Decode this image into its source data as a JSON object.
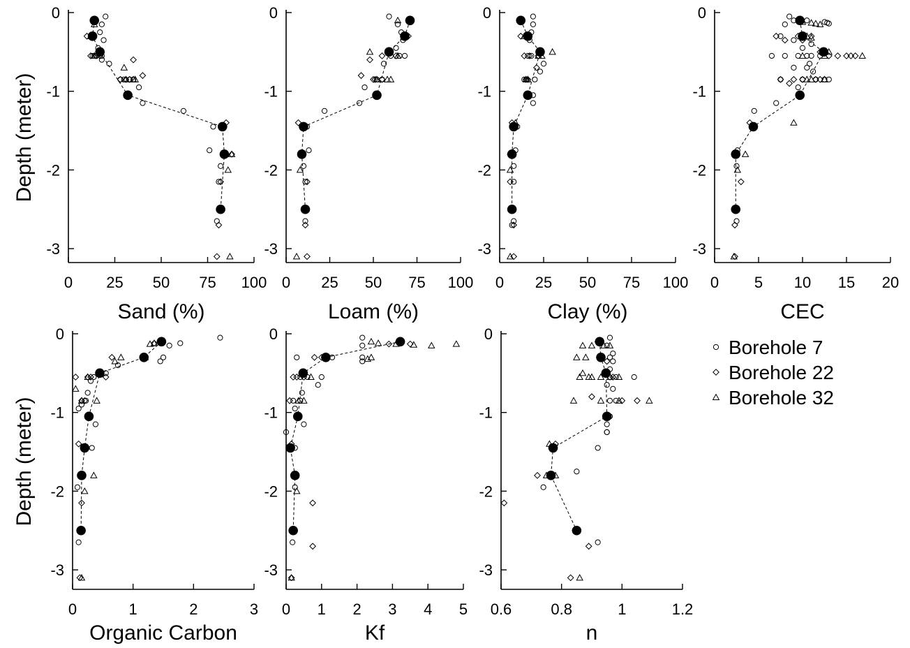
{
  "figure": {
    "y_axis_label": "Depth (meter)",
    "y_ticks": [
      0,
      -1,
      -2,
      -3
    ]
  },
  "legend": {
    "items": [
      {
        "marker": "circle",
        "label": "Borehole 7"
      },
      {
        "marker": "diamond",
        "label": "Borehole 22"
      },
      {
        "marker": "triangle",
        "label": "Borehole 32"
      }
    ]
  },
  "chart_data": [
    {
      "type": "scatter",
      "xlabel": "Sand (%)",
      "ylabel": "Depth (meter)",
      "xlim": [
        0,
        100
      ],
      "ylim": [
        -3.2,
        0
      ],
      "x_ticks": [
        0,
        25,
        50,
        75,
        100
      ],
      "mean": {
        "x": [
          14,
          13,
          17,
          32,
          83,
          84,
          82
        ],
        "y": [
          -0.1,
          -0.3,
          -0.5,
          -1.05,
          -1.45,
          -1.8,
          -2.5
        ]
      },
      "series": [
        {
          "name": "Borehole 7",
          "marker": "circle",
          "x": [
            20,
            18,
            17,
            19,
            18,
            15,
            14,
            13,
            16,
            18,
            22,
            28,
            30,
            33,
            35,
            38,
            40,
            62,
            78,
            76,
            82,
            81,
            80
          ],
          "y": [
            -0.05,
            -0.15,
            -0.25,
            -0.35,
            -0.55,
            -0.55,
            -0.55,
            -0.55,
            -0.45,
            -0.6,
            -0.65,
            -0.85,
            -0.85,
            -0.85,
            -0.85,
            -0.95,
            -1.15,
            -1.25,
            -1.45,
            -1.75,
            -1.95,
            -2.15,
            -2.65
          ]
        },
        {
          "name": "Borehole 22",
          "marker": "diamond",
          "x": [
            10,
            12,
            15,
            17,
            35,
            40,
            33,
            28,
            31,
            85,
            88,
            82,
            81,
            80
          ],
          "y": [
            -0.3,
            -0.55,
            -0.55,
            -0.55,
            -0.6,
            -0.8,
            -0.85,
            -0.85,
            -0.85,
            -1.4,
            -1.8,
            -2.15,
            -2.7,
            -3.1
          ]
        },
        {
          "name": "Borehole 32",
          "marker": "triangle",
          "x": [
            12,
            14,
            14,
            30,
            35,
            31,
            36,
            88,
            86,
            87
          ],
          "y": [
            -0.3,
            -0.55,
            -0.15,
            -0.7,
            -0.85,
            -0.85,
            -0.85,
            -1.8,
            -2.0,
            -3.1
          ]
        }
      ]
    },
    {
      "type": "scatter",
      "xlabel": "Loam (%)",
      "ylabel": "Depth (meter)",
      "xlim": [
        0,
        100
      ],
      "ylim": [
        -3.2,
        0
      ],
      "x_ticks": [
        0,
        25,
        50,
        75,
        100
      ],
      "mean": {
        "x": [
          71,
          68,
          59,
          52,
          10,
          9,
          11
        ],
        "y": [
          -0.1,
          -0.3,
          -0.5,
          -1.05,
          -1.45,
          -1.8,
          -2.5
        ]
      },
      "series": [
        {
          "name": "Borehole 7",
          "marker": "circle",
          "x": [
            59,
            64,
            66,
            67,
            65,
            60,
            68,
            63,
            56,
            55,
            52,
            45,
            42,
            22,
            12,
            13,
            10,
            11,
            11
          ],
          "y": [
            -0.05,
            -0.15,
            -0.25,
            -0.35,
            -0.55,
            -0.55,
            -0.55,
            -0.45,
            -0.65,
            -0.85,
            -0.85,
            -0.95,
            -1.15,
            -1.25,
            -1.45,
            -1.75,
            -1.95,
            -2.15,
            -2.65
          ]
        },
        {
          "name": "Borehole 22",
          "marker": "diamond",
          "x": [
            70,
            63,
            55,
            48,
            43,
            50,
            55,
            51,
            7,
            9,
            12,
            11,
            12
          ],
          "y": [
            -0.3,
            -0.55,
            -0.55,
            -0.6,
            -0.8,
            -0.85,
            -0.85,
            -0.85,
            -1.4,
            -1.8,
            -2.15,
            -2.7,
            -3.1
          ]
        },
        {
          "name": "Borehole 32",
          "marker": "triangle",
          "x": [
            64,
            68,
            64,
            48,
            58,
            52,
            60,
            8,
            6
          ],
          "y": [
            -0.1,
            -0.3,
            -0.55,
            -0.5,
            -0.85,
            -0.85,
            -0.85,
            -2.0,
            -3.1
          ]
        }
      ]
    },
    {
      "type": "scatter",
      "xlabel": "Clay (%)",
      "ylabel": "Depth (meter)",
      "xlim": [
        0,
        100
      ],
      "ylim": [
        -3.2,
        0
      ],
      "x_ticks": [
        0,
        25,
        50,
        75,
        100
      ],
      "mean": {
        "x": [
          12,
          16,
          23,
          16,
          8,
          7,
          7
        ],
        "y": [
          -0.1,
          -0.3,
          -0.5,
          -1.05,
          -1.45,
          -1.8,
          -2.5
        ]
      },
      "series": [
        {
          "name": "Borehole 7",
          "marker": "circle",
          "x": [
            19,
            19,
            18,
            17,
            16,
            18,
            22,
            25,
            23,
            20,
            15,
            14,
            19,
            19,
            10,
            9,
            8,
            8,
            8,
            7
          ],
          "y": [
            -0.05,
            -0.15,
            -0.25,
            -0.35,
            -0.55,
            -0.55,
            -0.55,
            -0.65,
            -0.75,
            -0.85,
            -0.85,
            -0.85,
            -1.05,
            -1.15,
            -1.45,
            -1.75,
            -1.95,
            -2.15,
            -2.65,
            -2.7
          ]
        },
        {
          "name": "Borehole 22",
          "marker": "diamond",
          "x": [
            12,
            14,
            17,
            22,
            21,
            16,
            15,
            7,
            6,
            6,
            8,
            8
          ],
          "y": [
            -0.3,
            -0.55,
            -0.55,
            -0.55,
            -0.7,
            -0.85,
            -0.85,
            -1.4,
            -1.8,
            -2.15,
            -2.7,
            -3.1
          ]
        },
        {
          "name": "Borehole 32",
          "marker": "triangle",
          "x": [
            12,
            14,
            22,
            30,
            24,
            15,
            16,
            9,
            6,
            6
          ],
          "y": [
            -0.1,
            -0.3,
            -0.55,
            -0.5,
            -0.55,
            -0.85,
            -0.85,
            -1.4,
            -2.0,
            -3.1
          ]
        }
      ]
    },
    {
      "type": "scatter",
      "xlabel": "CEC",
      "ylabel": "Depth (meter)",
      "xlim": [
        0,
        20
      ],
      "ylim": [
        -3.2,
        0
      ],
      "x_ticks": [
        0,
        5,
        10,
        15,
        20
      ],
      "mean": {
        "x": [
          9.7,
          10.0,
          12.4,
          9.7,
          4.4,
          2.4,
          2.4
        ],
        "y": [
          -0.1,
          -0.3,
          -0.5,
          -1.05,
          -1.45,
          -1.8,
          -2.5
        ]
      },
      "series": [
        {
          "name": "Borehole 7",
          "marker": "circle",
          "x": [
            8.5,
            9.0,
            8.0,
            7.5,
            10.5,
            12.5,
            12.8,
            13.0,
            9.0,
            10.0,
            11.0,
            6.5,
            8.0,
            9.5,
            10.5,
            11.0,
            12.0,
            9.0,
            10.5,
            7.5,
            10.0,
            11.5,
            12.5,
            13.0,
            11.2,
            10.8,
            9.5,
            7.0,
            4.5,
            2.6,
            2.5,
            2.5
          ],
          "y": [
            -0.05,
            -0.1,
            -0.15,
            -0.3,
            -0.1,
            -0.12,
            -0.13,
            -0.14,
            -0.35,
            -0.45,
            -0.4,
            -0.55,
            -0.55,
            -0.55,
            -0.55,
            -0.55,
            -0.55,
            -0.7,
            -0.7,
            -0.85,
            -0.85,
            -0.85,
            -0.85,
            -0.85,
            -0.75,
            -0.65,
            -0.95,
            -1.15,
            -1.25,
            -1.75,
            -1.95,
            -2.65
          ]
        },
        {
          "name": "Borehole 22",
          "marker": "diamond",
          "x": [
            7.0,
            8.0,
            9.5,
            10.0,
            11.0,
            12.0,
            13.0,
            14.0,
            15.0,
            15.5,
            16.0,
            7.5,
            8.5,
            9.0,
            10.0,
            11.5,
            12.0,
            4.0,
            3.0,
            2.3,
            2.3
          ],
          "y": [
            -0.3,
            -0.35,
            -0.3,
            -0.35,
            -0.3,
            -0.5,
            -0.55,
            -0.55,
            -0.55,
            -0.55,
            -0.55,
            -0.85,
            -0.9,
            -0.85,
            -0.85,
            -0.85,
            -0.85,
            -1.4,
            -2.15,
            -2.7,
            -3.1
          ]
        },
        {
          "name": "Borehole 32",
          "marker": "triangle",
          "x": [
            10.0,
            11.0,
            11.5,
            12.0,
            10.5,
            11.0,
            13.0,
            16.8,
            12.5,
            10.0,
            11.0,
            12.5,
            10.5,
            9.0,
            3.5,
            2.6,
            2.2
          ],
          "y": [
            -0.12,
            -0.13,
            -0.14,
            -0.15,
            -0.3,
            -0.32,
            -0.5,
            -0.55,
            -0.55,
            -0.55,
            -0.85,
            -0.85,
            -0.85,
            -1.4,
            -1.8,
            -2.0,
            -3.1
          ]
        }
      ]
    },
    {
      "type": "scatter",
      "xlabel": "Organic Carbon",
      "ylabel": "Depth (meter)",
      "xlim": [
        0,
        3
      ],
      "ylim": [
        -3.2,
        0
      ],
      "x_ticks": [
        0,
        1,
        2,
        3
      ],
      "mean": {
        "x": [
          1.47,
          1.18,
          0.45,
          0.27,
          0.2,
          0.15,
          0.14
        ],
        "y": [
          -0.1,
          -0.3,
          -0.5,
          -1.05,
          -1.45,
          -1.8,
          -2.5
        ]
      },
      "series": [
        {
          "name": "Borehole 7",
          "marker": "circle",
          "x": [
            2.44,
            1.78,
            1.6,
            1.5,
            1.45,
            0.75,
            0.55,
            0.35,
            0.3,
            0.25,
            0.22,
            0.15,
            0.1,
            0.25,
            0.38,
            0.32,
            0.08,
            0.1
          ],
          "y": [
            -0.05,
            -0.12,
            -0.15,
            -0.3,
            -0.35,
            -0.4,
            -0.5,
            -0.55,
            -0.6,
            -0.75,
            -0.85,
            -0.9,
            -0.95,
            -1.05,
            -1.15,
            -1.45,
            -1.95,
            -2.65
          ]
        },
        {
          "name": "Borehole 22",
          "marker": "diamond",
          "x": [
            1.35,
            1.2,
            0.65,
            0.55,
            0.3,
            0.25,
            0.05,
            0.15,
            0.2,
            0.1,
            0.15,
            0.15,
            0.12
          ],
          "y": [
            -0.12,
            -0.3,
            -0.3,
            -0.55,
            -0.55,
            -0.55,
            -0.55,
            -0.85,
            -0.85,
            -1.4,
            -1.8,
            -2.15,
            -3.1
          ]
        },
        {
          "name": "Borehole 32",
          "marker": "triangle",
          "x": [
            1.35,
            1.28,
            1.2,
            0.8,
            0.7,
            0.25,
            0.05,
            0.4,
            0.15,
            0.35,
            0.2,
            0.15
          ],
          "y": [
            -0.12,
            -0.13,
            -0.3,
            -0.3,
            -0.35,
            -0.55,
            -0.7,
            -0.85,
            -0.85,
            -1.8,
            -2.0,
            -3.1
          ]
        }
      ]
    },
    {
      "type": "scatter",
      "xlabel": "Kf",
      "ylabel": "Depth (meter)",
      "xlim": [
        0,
        5
      ],
      "ylim": [
        -3.2,
        0
      ],
      "x_ticks": [
        0,
        1,
        2,
        3,
        4,
        5
      ],
      "mean": {
        "x": [
          3.22,
          1.12,
          0.48,
          0.33,
          0.12,
          0.25,
          0.2
        ],
        "y": [
          -0.1,
          -0.3,
          -0.5,
          -1.05,
          -1.45,
          -1.8,
          -2.5
        ]
      },
      "series": [
        {
          "name": "Borehole 7",
          "marker": "circle",
          "x": [
            2.15,
            2.15,
            2.15,
            2.15,
            1.3,
            1.0,
            0.9,
            0.6,
            0.4,
            0.3,
            0.2,
            0.4,
            0.45,
            0.25,
            0.5,
            0.3,
            0.0,
            0.25,
            0.25,
            0.18
          ],
          "y": [
            -0.05,
            -0.15,
            -0.3,
            -0.35,
            -0.3,
            -0.55,
            -0.65,
            -0.55,
            -0.55,
            -0.3,
            -0.85,
            -0.85,
            -0.75,
            -0.95,
            -1.15,
            -1.05,
            -1.25,
            -1.45,
            -1.95,
            -2.65
          ]
        },
        {
          "name": "Borehole 22",
          "marker": "diamond",
          "x": [
            2.9,
            3.5,
            1.0,
            0.8,
            0.5,
            0.3,
            0.2,
            0.1,
            0.15,
            0.25,
            0.75,
            0.75,
            0.15
          ],
          "y": [
            -0.13,
            -0.13,
            -0.3,
            -0.3,
            -0.55,
            -0.55,
            -0.55,
            -0.85,
            -1.4,
            -1.8,
            -2.15,
            -2.7,
            -3.1
          ]
        },
        {
          "name": "Borehole 32",
          "marker": "triangle",
          "x": [
            2.4,
            2.6,
            3.1,
            3.6,
            4.1,
            4.8,
            2.4,
            2.3,
            0.7,
            0.5,
            0.35,
            0.3,
            0.15
          ],
          "y": [
            -0.1,
            -0.12,
            -0.13,
            -0.14,
            -0.15,
            -0.13,
            -0.3,
            -0.32,
            -0.55,
            -0.85,
            -0.85,
            -2.0,
            -3.1
          ]
        }
      ]
    },
    {
      "type": "scatter",
      "xlabel": "n",
      "ylabel": "Depth (meter)",
      "xlim": [
        0.6,
        1.2
      ],
      "ylim": [
        -3.2,
        0
      ],
      "x_ticks": [
        0.6,
        0.8,
        1.0,
        1.2
      ],
      "mean": {
        "x": [
          0.926,
          0.93,
          0.947,
          0.95,
          0.772,
          0.765,
          0.85
        ],
        "y": [
          -0.1,
          -0.3,
          -0.5,
          -1.05,
          -1.45,
          -1.8,
          -2.5
        ]
      },
      "series": [
        {
          "name": "Borehole 7",
          "marker": "circle",
          "x": [
            0.96,
            0.95,
            0.97,
            0.96,
            0.97,
            0.96,
            0.98,
            0.95,
            1.04,
            0.97,
            0.96,
            0.98,
            0.95,
            0.96,
            0.95,
            0.95,
            0.92,
            0.85,
            0.74,
            0.92
          ],
          "y": [
            -0.05,
            -0.15,
            -0.25,
            -0.3,
            -0.35,
            -0.45,
            -0.55,
            -0.65,
            -0.55,
            -0.7,
            -0.85,
            -0.85,
            -1.15,
            -1.05,
            -1.25,
            -1.25,
            -1.45,
            -1.75,
            -1.95,
            -2.65
          ]
        },
        {
          "name": "Borehole 22",
          "marker": "diamond",
          "x": [
            0.92,
            0.95,
            0.97,
            0.96,
            0.9,
            1.0,
            1.05,
            0.78,
            0.72,
            0.61,
            0.89,
            0.83
          ],
          "y": [
            -0.1,
            -0.35,
            -0.55,
            -0.55,
            -0.8,
            -0.85,
            -0.85,
            -1.4,
            -1.8,
            -2.15,
            -2.7,
            -3.1
          ]
        },
        {
          "name": "Borehole 32",
          "marker": "triangle",
          "x": [
            0.87,
            0.9,
            0.94,
            0.96,
            0.88,
            0.85,
            0.86,
            0.89,
            0.87,
            0.9,
            0.93,
            0.96,
            0.99,
            0.84,
            0.93,
            0.99,
            1.09,
            0.76,
            0.75,
            0.78,
            0.86
          ],
          "y": [
            -0.15,
            -0.15,
            -0.15,
            -0.15,
            -0.3,
            -0.3,
            -0.55,
            -0.55,
            -0.5,
            -0.55,
            -0.55,
            -0.55,
            -0.55,
            -0.85,
            -0.85,
            -0.85,
            -0.85,
            -1.4,
            -1.8,
            -1.8,
            -3.1
          ]
        }
      ]
    }
  ]
}
